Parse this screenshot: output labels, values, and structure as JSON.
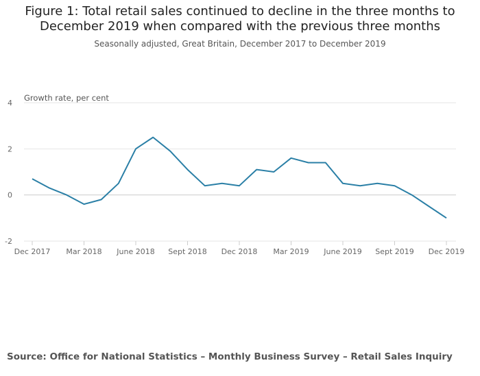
{
  "title": "Figure 1: Total retail sales continued to decline in the three months to December 2019 when compared with the previous three months",
  "subtitle": "Seasonally adjusted, Great Britain, December 2017 to December 2019",
  "source": "Source: Office for National Statistics – Monthly Business Survey – Retail Sales Inquiry",
  "colors": {
    "line": "#2a7fa6",
    "grid": "#e6e6e6",
    "zero_line": "#cccccc",
    "axis_text": "#666666"
  },
  "chart_data": {
    "type": "line",
    "title": "Figure 1: Total retail sales continued to decline in the three months to December 2019 when compared with the previous three months",
    "subtitle": "Seasonally adjusted, Great Britain, December 2017 to December 2019",
    "ylabel": "Growth rate, per cent",
    "xlabel": "",
    "ylim": [
      -2,
      4
    ],
    "yticks": [
      "4",
      "2",
      "0",
      "-2"
    ],
    "ytick_values": [
      4,
      2,
      0,
      -2
    ],
    "grid": true,
    "legend": "none",
    "x": [
      "Dec 2017",
      "Jan 2018",
      "Feb 2018",
      "Mar 2018",
      "Apr 2018",
      "May 2018",
      "June 2018",
      "July 2018",
      "Aug 2018",
      "Sept 2018",
      "Oct 2018",
      "Nov 2018",
      "Dec 2018",
      "Jan 2019",
      "Feb 2019",
      "Mar 2019",
      "Apr 2019",
      "May 2019",
      "June 2019",
      "July 2019",
      "Aug 2019",
      "Sept 2019",
      "Oct 2019",
      "Nov 2019",
      "Dec 2019"
    ],
    "xtick_labels": [
      "Dec 2017",
      "Mar 2018",
      "June 2018",
      "Sept 2018",
      "Dec 2018",
      "Mar 2019",
      "June 2019",
      "Sept 2019",
      "Dec 2019"
    ],
    "series": [
      {
        "values": [
          0.7,
          0.3,
          0.0,
          -0.4,
          -0.2,
          0.5,
          2.0,
          2.5,
          1.9,
          1.1,
          0.4,
          0.5,
          0.4,
          1.1,
          1.0,
          1.6,
          1.4,
          1.4,
          0.5,
          0.4,
          0.5,
          0.4,
          0.0,
          -0.5,
          -1.0
        ]
      }
    ]
  }
}
